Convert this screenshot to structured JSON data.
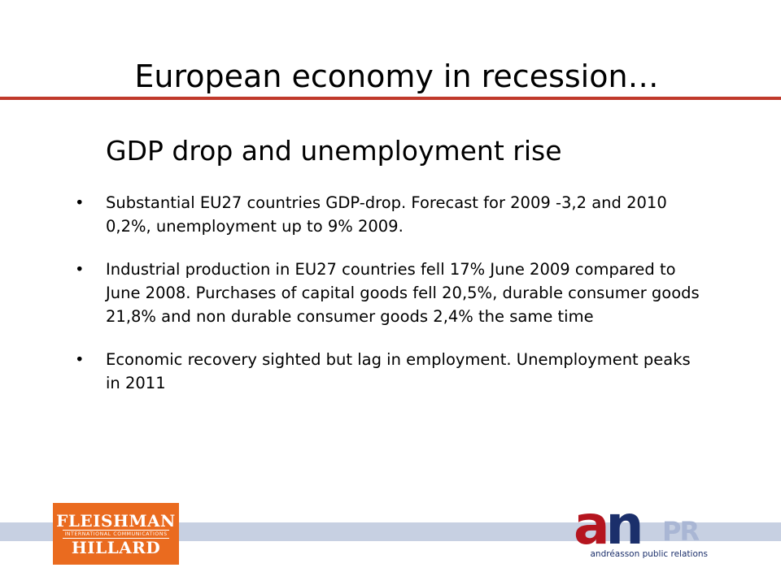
{
  "slide": {
    "title": "European economy in recession…",
    "subtitle": "GDP drop and unemployment rise",
    "bullet_char": "•",
    "bullets": [
      "Substantial EU27 countries GDP-drop. Forecast for 2009 -3,2 and 2010 0,2%, unemployment up to 9% 2009.",
      "Industrial production in EU27 countries fell 17% June 2009 compared to June 2008. Purchases of capital goods fell 20,5%, durable consumer goods 21,8% and non durable consumer goods 2,4% the same time",
      "Economic recovery sighted but lag in employment. Unemployment peaks in 2011"
    ]
  },
  "logos": {
    "fleishman": {
      "line1": "FLEISHMAN",
      "line2": "INTERNATIONAL COMMUNICATIONS",
      "line3": "HILLARD",
      "color": "#ea6b1f"
    },
    "andreasson": {
      "letter_a": "a",
      "letter_n": "n",
      "letters_pr": "PR",
      "caption": "andréasson public relations",
      "red": "#b5151f",
      "blue": "#1b2f6b"
    }
  },
  "colors": {
    "title_rule": "#c0392b",
    "footer_band": "#c7d0e2"
  }
}
